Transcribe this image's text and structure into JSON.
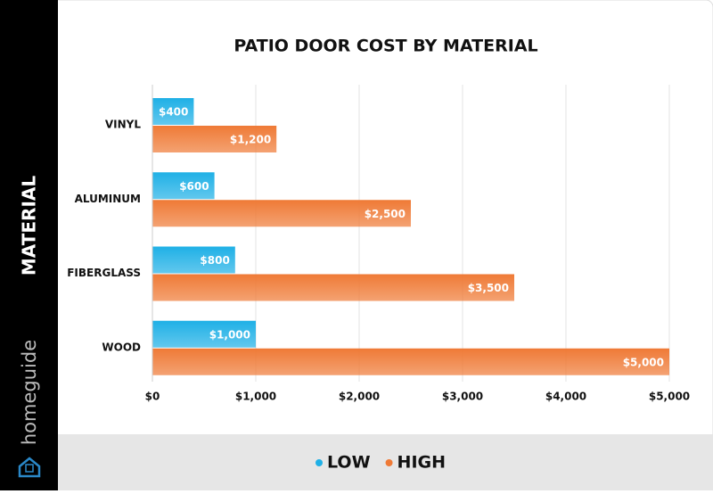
{
  "brand": "homeguide",
  "chart_data": {
    "type": "hbar",
    "title": "PATIO DOOR COST BY MATERIAL",
    "y_label": "MATERIAL",
    "categories": [
      "VINYL",
      "ALUMINUM",
      "FIBERGLASS",
      "WOOD"
    ],
    "series": [
      {
        "name": "LOW",
        "color": "#1fb0e6",
        "values": [
          400,
          600,
          800,
          1000
        ],
        "value_labels": [
          "$400",
          "$600",
          "$800",
          "$1,000"
        ]
      },
      {
        "name": "HIGH",
        "color": "#ef7a36",
        "values": [
          1200,
          2500,
          3500,
          5000
        ],
        "value_labels": [
          "$1,200",
          "$2,500",
          "$3,500",
          "$5,000"
        ]
      }
    ],
    "xlim": [
      0,
      5000
    ],
    "xticks": [
      {
        "value": 0,
        "label": "$0"
      },
      {
        "value": 1000,
        "label": "$1,000"
      },
      {
        "value": 2000,
        "label": "$2,000"
      },
      {
        "value": 3000,
        "label": "$3,000"
      },
      {
        "value": 4000,
        "label": "$4,000"
      },
      {
        "value": 5000,
        "label": "$5,000"
      }
    ],
    "grid": true,
    "legend": "bottom"
  }
}
